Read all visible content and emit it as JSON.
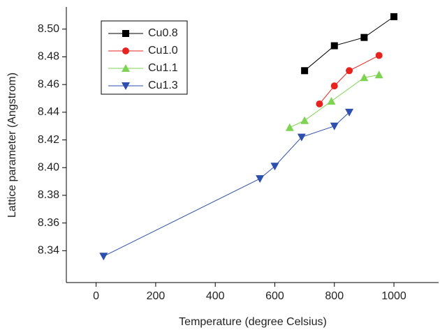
{
  "chart_data": {
    "type": "line",
    "x_label": "Temperature (degree Celsius)",
    "y_label": "Lattice parameter (Angstrom)",
    "xlim": [
      -100,
      1150
    ],
    "xticks": [
      0,
      200,
      400,
      600,
      800,
      1000
    ],
    "ylim": [
      8.317,
      8.516
    ],
    "yticks": [
      {
        "value": 8.34,
        "label": "8.34"
      },
      {
        "value": 8.36,
        "label": "8.36"
      },
      {
        "value": 8.38,
        "label": "8.38"
      },
      {
        "value": 8.4,
        "label": "8.40"
      },
      {
        "value": 8.42,
        "label": "8.42"
      },
      {
        "value": 8.44,
        "label": "8.44"
      },
      {
        "value": 8.46,
        "label": "8.46"
      },
      {
        "value": 8.48,
        "label": "8.48"
      },
      {
        "value": 8.5,
        "label": "8.50"
      }
    ],
    "legend": "upper left",
    "series": [
      {
        "name": "Cu0.8",
        "color": "#000000",
        "marker": "square",
        "x": [
          700,
          800,
          900,
          1000
        ],
        "values": [
          8.47,
          8.488,
          8.494,
          8.509
        ]
      },
      {
        "name": "Cu1.0",
        "color": "#e8231f",
        "marker": "circle",
        "x": [
          750,
          800,
          850,
          950
        ],
        "values": [
          8.446,
          8.459,
          8.47,
          8.481
        ]
      },
      {
        "name": "Cu1.1",
        "color": "#7fd352",
        "marker": "triangle-up",
        "x": [
          650,
          700,
          790,
          900,
          950
        ],
        "values": [
          8.429,
          8.434,
          8.448,
          8.465,
          8.467
        ]
      },
      {
        "name": "Cu1.3",
        "color": "#2e4fae",
        "marker": "triangle-down",
        "x": [
          25,
          550,
          600,
          690,
          800,
          850
        ],
        "values": [
          8.336,
          8.392,
          8.401,
          8.422,
          8.43,
          8.44
        ]
      }
    ]
  }
}
